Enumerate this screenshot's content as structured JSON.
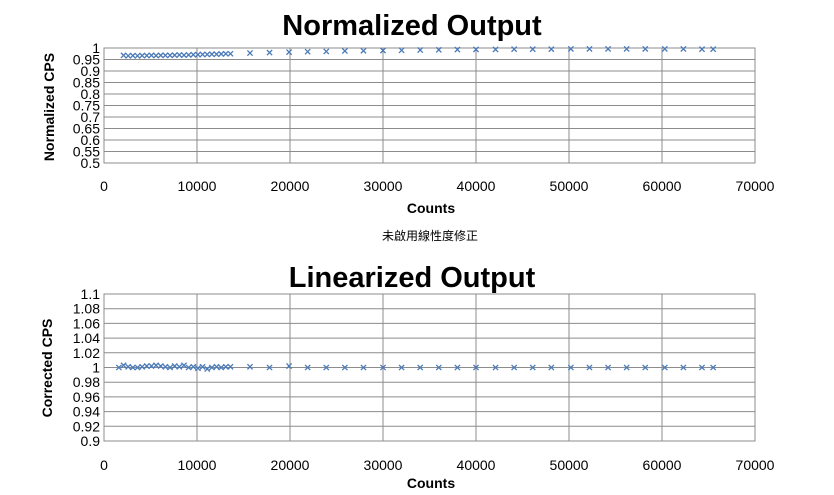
{
  "chart_data": [
    {
      "type": "scatter",
      "title": "Normalized Output",
      "xlabel": "Counts",
      "ylabel": "Normalized CPS",
      "xlim": [
        0,
        70000
      ],
      "ylim": [
        0.5,
        1
      ],
      "x_ticks": [
        "0",
        "10000",
        "20000",
        "30000",
        "40000",
        "50000",
        "60000",
        "70000"
      ],
      "y_ticks": [
        "0.5",
        "0.55",
        "0.6",
        "0.65",
        "0.7",
        "0.75",
        "0.8",
        "0.85",
        "0.9",
        "0.95",
        "1"
      ],
      "grid": true,
      "marker": "x",
      "color": "#4a7ab8",
      "points": [
        [
          2100,
          0.968
        ],
        [
          2600,
          0.966
        ],
        [
          3100,
          0.967
        ],
        [
          3600,
          0.966
        ],
        [
          4100,
          0.967
        ],
        [
          4600,
          0.967
        ],
        [
          5100,
          0.968
        ],
        [
          5600,
          0.967
        ],
        [
          6100,
          0.968
        ],
        [
          6600,
          0.968
        ],
        [
          7100,
          0.968
        ],
        [
          7600,
          0.969
        ],
        [
          8100,
          0.97
        ],
        [
          8600,
          0.969
        ],
        [
          9100,
          0.97
        ],
        [
          9600,
          0.971
        ],
        [
          10100,
          0.971
        ],
        [
          10600,
          0.972
        ],
        [
          11100,
          0.972
        ],
        [
          11600,
          0.973
        ],
        [
          12100,
          0.973
        ],
        [
          12600,
          0.974
        ],
        [
          13100,
          0.975
        ],
        [
          13600,
          0.975
        ],
        [
          15700,
          0.978
        ],
        [
          17800,
          0.98
        ],
        [
          19900,
          0.982
        ],
        [
          21900,
          0.984
        ],
        [
          23900,
          0.985
        ],
        [
          25900,
          0.987
        ],
        [
          27900,
          0.988
        ],
        [
          30000,
          0.989
        ],
        [
          32000,
          0.99
        ],
        [
          34000,
          0.991
        ],
        [
          36000,
          0.992
        ],
        [
          38000,
          0.993
        ],
        [
          40000,
          0.994
        ],
        [
          42100,
          0.994
        ],
        [
          44100,
          0.995
        ],
        [
          46100,
          0.995
        ],
        [
          48100,
          0.995
        ],
        [
          50200,
          0.996
        ],
        [
          52200,
          0.996
        ],
        [
          54200,
          0.996
        ],
        [
          56200,
          0.996
        ],
        [
          58200,
          0.996
        ],
        [
          60300,
          0.996
        ],
        [
          62300,
          0.996
        ],
        [
          64300,
          0.995
        ],
        [
          65500,
          0.995
        ]
      ]
    },
    {
      "type": "scatter",
      "title": "Linearized Output",
      "xlabel": "Counts",
      "ylabel": "Corrected CPS",
      "xlim": [
        0,
        70000
      ],
      "ylim": [
        0.9,
        1.1
      ],
      "x_ticks": [
        "0",
        "10000",
        "20000",
        "30000",
        "40000",
        "50000",
        "60000",
        "70000"
      ],
      "y_ticks": [
        "0.9",
        "0.92",
        "0.94",
        "0.96",
        "0.98",
        "1",
        "1.02",
        "1.04",
        "1.06",
        "1.08",
        "1.1"
      ],
      "grid": true,
      "marker": "x",
      "color": "#4a7ab8",
      "points": [
        [
          1600,
          1.0
        ],
        [
          2100,
          1.003
        ],
        [
          2600,
          1.001
        ],
        [
          3100,
          1.0
        ],
        [
          3600,
          1.0
        ],
        [
          4100,
          1.001
        ],
        [
          4600,
          1.002
        ],
        [
          5100,
          1.002
        ],
        [
          5600,
          1.003
        ],
        [
          6100,
          1.002
        ],
        [
          6600,
          1.001
        ],
        [
          7100,
          1.0
        ],
        [
          7600,
          1.002
        ],
        [
          8100,
          1.001
        ],
        [
          8600,
          1.003
        ],
        [
          9100,
          1.0
        ],
        [
          9600,
          1.001
        ],
        [
          10100,
          0.999
        ],
        [
          10600,
          1.001
        ],
        [
          11100,
          0.998
        ],
        [
          11600,
          1.0
        ],
        [
          12100,
          1.001
        ],
        [
          12600,
          1.0
        ],
        [
          13100,
          1.001
        ],
        [
          13600,
          1.001
        ],
        [
          15700,
          1.001
        ],
        [
          17800,
          1.0
        ],
        [
          19900,
          1.002
        ],
        [
          21900,
          1.0
        ],
        [
          23900,
          1.0
        ],
        [
          25900,
          1.0
        ],
        [
          27900,
          1.0
        ],
        [
          30000,
          1.0
        ],
        [
          32000,
          1.0
        ],
        [
          34000,
          1.0
        ],
        [
          36000,
          1.0
        ],
        [
          38000,
          1.0
        ],
        [
          40000,
          1.0
        ],
        [
          42100,
          1.0
        ],
        [
          44100,
          1.0
        ],
        [
          46100,
          1.0
        ],
        [
          48100,
          1.0
        ],
        [
          50200,
          1.0
        ],
        [
          52200,
          1.0
        ],
        [
          54200,
          1.0
        ],
        [
          56200,
          1.0
        ],
        [
          58200,
          1.0
        ],
        [
          60300,
          1.0
        ],
        [
          62300,
          1.0
        ],
        [
          64300,
          1.0
        ],
        [
          65500,
          1.0
        ]
      ]
    }
  ],
  "caption": "未啟用線性度修正"
}
